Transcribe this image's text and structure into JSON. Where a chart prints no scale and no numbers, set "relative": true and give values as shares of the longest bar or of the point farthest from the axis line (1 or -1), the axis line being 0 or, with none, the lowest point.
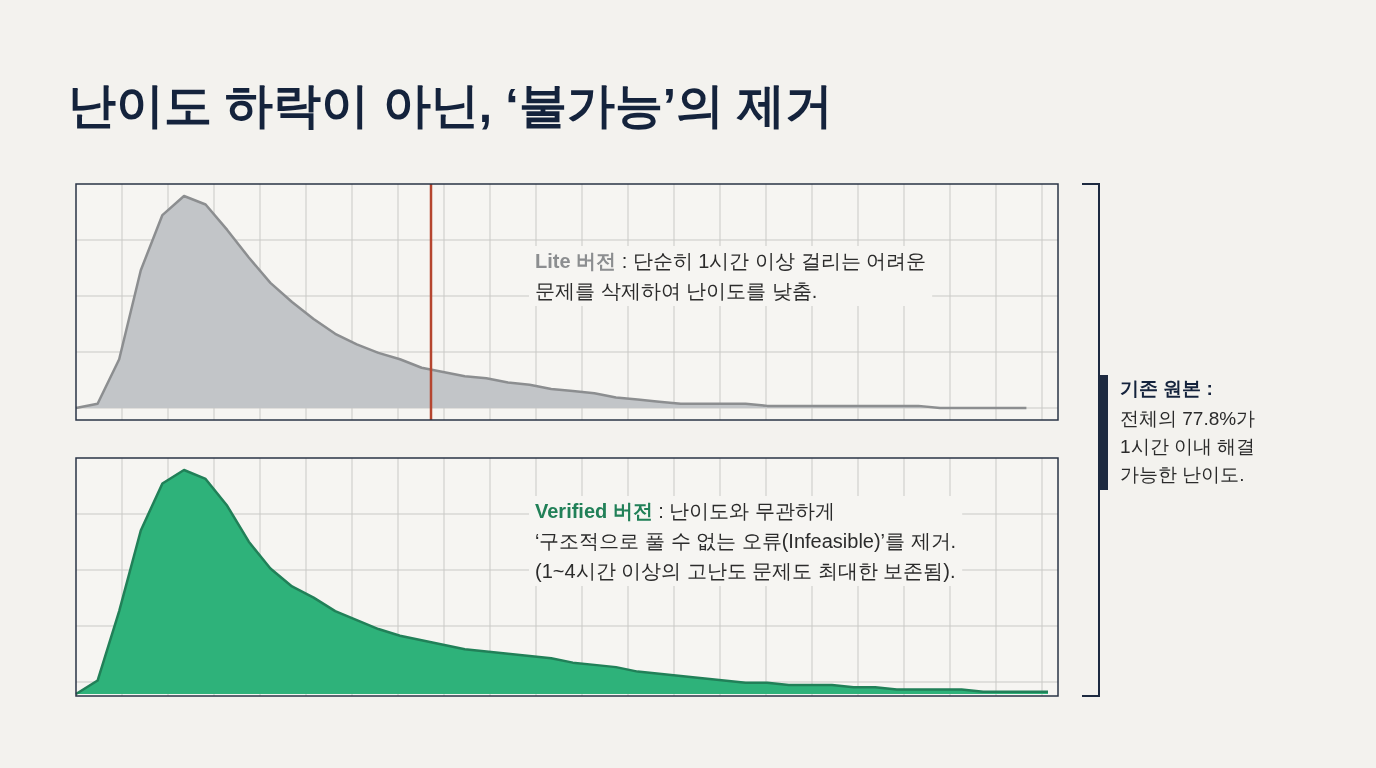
{
  "chart_data": [
    {
      "type": "area",
      "title": "난이도 하락이 아닌, ‘불가능’의 제거",
      "relative": true,
      "grid": true,
      "categories": [
        null,
        null,
        null,
        null,
        null,
        null,
        null,
        null,
        null,
        null,
        null,
        null,
        null,
        null,
        null,
        null,
        null,
        null,
        null,
        null,
        null,
        null,
        null,
        null,
        null,
        null,
        null,
        null,
        null,
        null,
        null,
        null,
        null,
        null,
        null,
        null,
        null,
        null,
        null,
        null,
        null,
        null,
        null,
        null,
        null,
        null
      ],
      "series": [
        {
          "name": "Lite 버전",
          "color": "#c2c5c8",
          "values": [
            0,
            0.02,
            0.23,
            0.65,
            0.91,
            1.0,
            0.96,
            0.84,
            0.71,
            0.59,
            0.5,
            0.42,
            0.35,
            0.3,
            0.26,
            0.23,
            0.19,
            0.17,
            0.15,
            0.14,
            0.12,
            0.11,
            0.09,
            0.08,
            0.07,
            0.05,
            0.04,
            0.03,
            0.02,
            0.02,
            0.02,
            0.02,
            0.01,
            0.01,
            0.01,
            0.01,
            0.01,
            0.01,
            0.01,
            0.01,
            0,
            0,
            0,
            0,
            0,
            null
          ]
        }
      ],
      "annotations": [
        " : 단순히 1시간 이상 걸리는 어려운\n문제를 삭제하여 난이도를 낮춤."
      ]
    },
    {
      "type": "area",
      "relative": true,
      "grid": true,
      "categories": [
        null,
        null,
        null,
        null,
        null,
        null,
        null,
        null,
        null,
        null,
        null,
        null,
        null,
        null,
        null,
        null,
        null,
        null,
        null,
        null,
        null,
        null,
        null,
        null,
        null,
        null,
        null,
        null,
        null,
        null,
        null,
        null,
        null,
        null,
        null,
        null,
        null,
        null,
        null,
        null,
        null,
        null,
        null,
        null,
        null,
        null
      ],
      "series": [
        {
          "name": "Verified 버전",
          "color": "#2eb27a",
          "values": [
            0,
            0.06,
            0.37,
            0.73,
            0.94,
            1.0,
            0.96,
            0.84,
            0.68,
            0.56,
            0.48,
            0.43,
            0.37,
            0.33,
            0.29,
            0.26,
            0.24,
            0.22,
            0.2,
            0.19,
            0.18,
            0.17,
            0.16,
            0.14,
            0.13,
            0.12,
            0.1,
            0.09,
            0.08,
            0.07,
            0.06,
            0.05,
            0.05,
            0.04,
            0.04,
            0.04,
            0.03,
            0.03,
            0.02,
            0.02,
            0.02,
            0.02,
            0.01,
            0.01,
            0.01,
            0.01
          ]
        }
      ],
      "annotations": [
        " : 난이도와 무관하게\n‘구조적으로 풀 수 없는 오류(Infeasible)’를 제거.\n(1~4시간 이상의 고난도 문제도 최대한 보존됨)."
      ]
    },
    {
      "type": "other",
      "title": "기존 원본 :",
      "annotations": [
        "전체의 77.8%가\n1시간 이내 해결\n가능한 난이도."
      ]
    }
  ]
}
